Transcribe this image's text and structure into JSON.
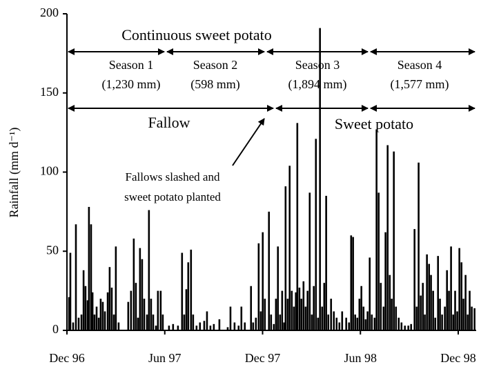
{
  "chart_data": {
    "type": "bar",
    "ylabel": "Rainfall (mm d⁻¹)",
    "color": "#000000",
    "xlim": [
      0,
      25.1
    ],
    "xticks": [
      {
        "value": 0,
        "label": "Dec 96"
      },
      {
        "value": 6,
        "label": "Jun 97"
      },
      {
        "value": 12,
        "label": "Dec 97"
      },
      {
        "value": 18,
        "label": "Jun 98"
      },
      {
        "value": 24,
        "label": "Dec 98"
      }
    ],
    "ylim": [
      0,
      200
    ],
    "yticks": [
      0,
      50,
      100,
      150,
      200
    ],
    "x": [
      0.13,
      0.21,
      0.38,
      0.55,
      0.72,
      0.89,
      1.02,
      1.14,
      1.27,
      1.35,
      1.48,
      1.57,
      1.69,
      1.82,
      1.95,
      2.07,
      2.2,
      2.33,
      2.5,
      2.62,
      2.75,
      2.88,
      3.0,
      3.17,
      3.76,
      3.93,
      4.1,
      4.23,
      4.36,
      4.48,
      4.61,
      4.74,
      4.91,
      5.03,
      5.16,
      5.29,
      5.46,
      5.58,
      5.75,
      5.88,
      6.26,
      6.51,
      6.81,
      7.06,
      7.19,
      7.32,
      7.44,
      7.61,
      7.74,
      7.95,
      8.16,
      8.42,
      8.59,
      8.8,
      9.01,
      9.35,
      9.86,
      10.03,
      10.28,
      10.53,
      10.7,
      10.91,
      11.29,
      11.42,
      11.59,
      11.76,
      11.89,
      12.01,
      12.14,
      12.39,
      12.52,
      12.69,
      12.82,
      12.94,
      13.07,
      13.2,
      13.32,
      13.41,
      13.54,
      13.66,
      13.79,
      13.92,
      14.04,
      14.13,
      14.26,
      14.38,
      14.51,
      14.64,
      14.76,
      14.89,
      15.02,
      15.14,
      15.27,
      15.4,
      15.52,
      15.65,
      15.78,
      15.9,
      16.03,
      16.2,
      16.37,
      16.54,
      16.71,
      16.88,
      17.13,
      17.3,
      17.43,
      17.55,
      17.68,
      17.81,
      17.94,
      18.06,
      18.19,
      18.32,
      18.44,
      18.57,
      18.7,
      18.87,
      18.99,
      19.12,
      19.25,
      19.42,
      19.54,
      19.67,
      19.8,
      19.92,
      20.05,
      20.18,
      20.35,
      20.52,
      20.73,
      20.94,
      21.11,
      21.32,
      21.45,
      21.57,
      21.7,
      21.83,
      21.95,
      22.08,
      22.21,
      22.33,
      22.46,
      22.59,
      22.76,
      22.88,
      23.01,
      23.18,
      23.31,
      23.43,
      23.56,
      23.69,
      23.81,
      23.94,
      24.07,
      24.2,
      24.32,
      24.45,
      24.58,
      24.7,
      24.83,
      25.0
    ],
    "values": [
      21,
      49,
      5,
      67,
      8,
      10,
      38,
      28,
      19,
      78,
      67,
      24,
      10,
      15,
      8,
      20,
      18,
      12,
      24,
      40,
      27,
      10,
      53,
      5,
      18,
      25,
      58,
      30,
      8,
      52,
      45,
      20,
      10,
      76,
      20,
      10,
      3,
      25,
      25,
      10,
      3,
      4,
      3,
      49,
      10,
      26,
      43,
      51,
      10,
      3,
      5,
      6,
      12,
      3,
      4,
      7,
      2,
      15,
      5,
      3,
      15,
      5,
      28,
      5,
      8,
      55,
      12,
      62,
      20,
      75,
      10,
      4,
      20,
      53,
      10,
      25,
      5,
      91,
      20,
      104,
      25,
      15,
      24,
      131,
      27,
      20,
      31,
      15,
      25,
      87,
      10,
      28,
      121,
      8,
      191,
      15,
      30,
      85,
      10,
      20,
      12,
      8,
      5,
      12,
      8,
      5,
      60,
      59,
      10,
      8,
      20,
      28,
      15,
      7,
      12,
      46,
      10,
      8,
      127,
      87,
      30,
      15,
      62,
      117,
      35,
      20,
      113,
      15,
      8,
      5,
      3,
      3,
      4,
      64,
      15,
      106,
      22,
      30,
      10,
      48,
      42,
      35,
      25,
      8,
      47,
      20,
      10,
      15,
      38,
      25,
      53,
      10,
      25,
      12,
      52,
      43,
      20,
      35,
      10,
      25,
      15,
      14
    ],
    "annotations": {
      "continuous": "Continuous sweet potato",
      "seasons": [
        [
          "Season 1",
          "(1,230 mm)"
        ],
        [
          "Season 2",
          "(598 mm)"
        ],
        [
          "Season 3",
          "(1,894 mm)"
        ],
        [
          "Season 4",
          "(1,577 mm)"
        ]
      ],
      "fallow": "Fallow",
      "sweet_potato": "Sweet potato",
      "note": [
        "Fallows slashed and",
        "sweet potato planted"
      ]
    }
  }
}
